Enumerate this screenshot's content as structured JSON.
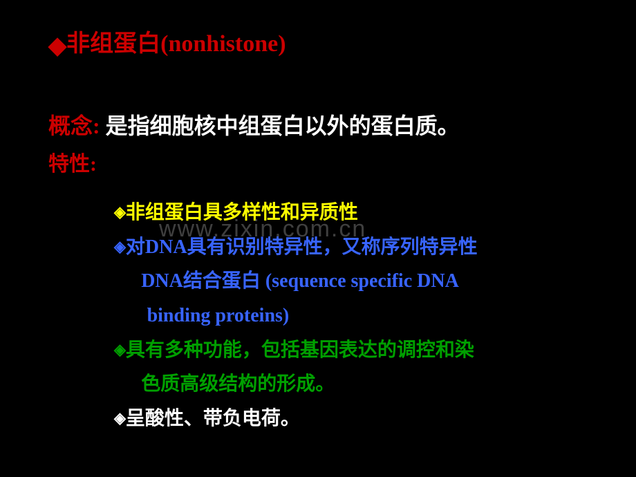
{
  "title": "非组蛋白(nonhistone)",
  "concept_label": "概念:",
  "concept_text": " 是指细胞核中组蛋白以外的蛋白质。",
  "properties_label": "特性:",
  "bullets": {
    "b1": "非组蛋白具多样性和异质性",
    "b2a": "对DNA具有识别特异性，又称序列特异性",
    "b2b": "DNA结合蛋白 (sequence specific DNA",
    "b2c": "binding proteins)",
    "b3a": "具有多种功能，包括基因表达的调控和染",
    "b3b": "色质高级结构的形成。",
    "b4": "呈酸性、带负电荷。"
  },
  "watermark": "www.zixin.com.cn"
}
